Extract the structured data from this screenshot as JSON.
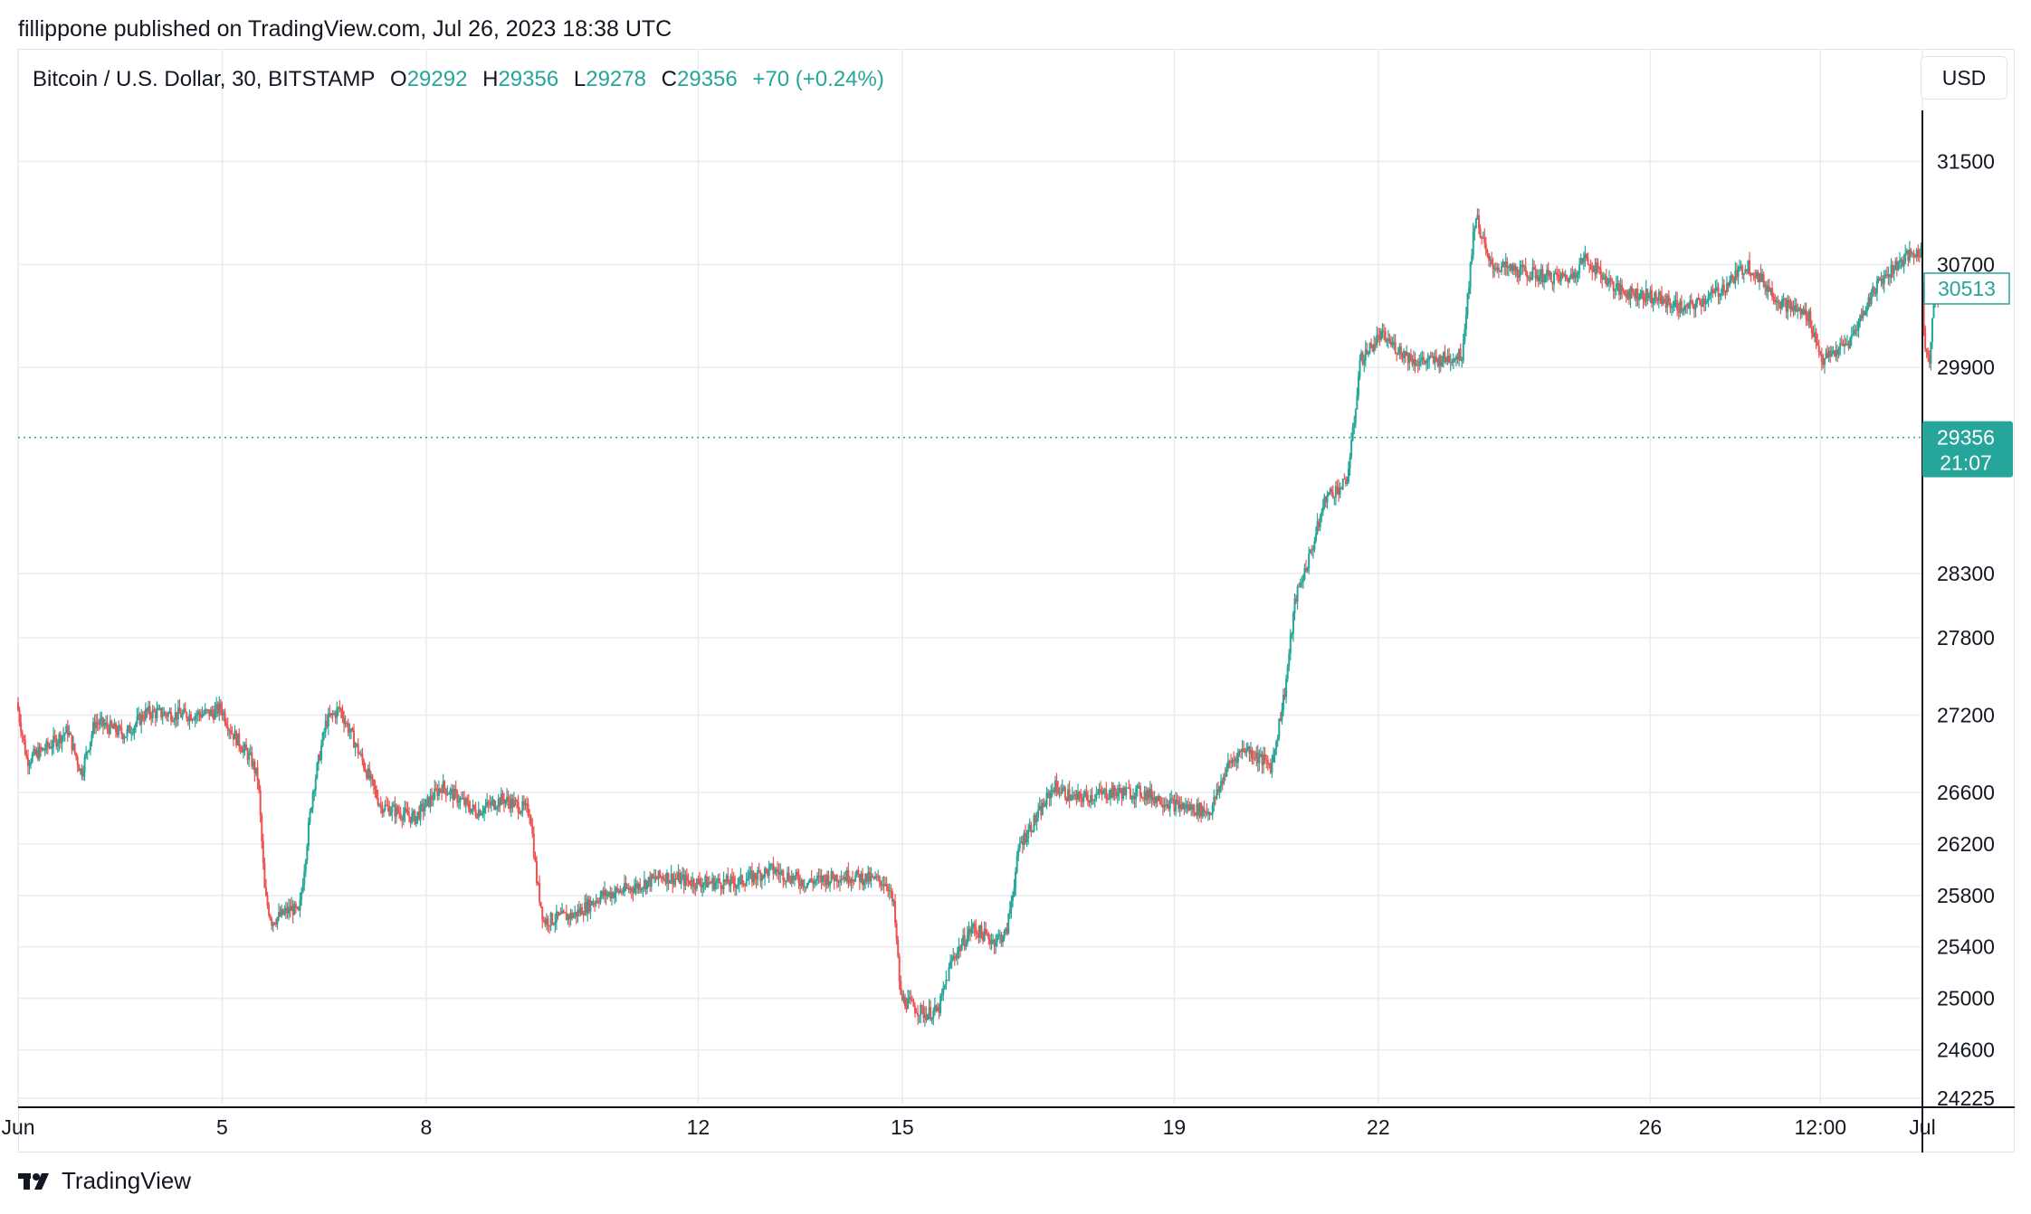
{
  "header": {
    "publish_line": "fillippone published on TradingView.com, Jul 26, 2023 18:38 UTC"
  },
  "legend": {
    "symbol": "Bitcoin / U.S. Dollar, 30, BITSTAMP",
    "open_label": "O",
    "open": "29292",
    "high_label": "H",
    "high": "29356",
    "low_label": "L",
    "low": "29278",
    "close_label": "C",
    "close": "29356",
    "change": "+70 (+0.24%)"
  },
  "currency_button": {
    "label": "USD"
  },
  "footer": {
    "brand": "TradingView"
  },
  "colors": {
    "up": "#26a69a",
    "down": "#ef5350",
    "grid": "#e8ecf2",
    "axis_line": "#131722",
    "text": "#131722",
    "last_price_bg": "#26a69a"
  },
  "icons": {
    "footer_logo": "tradingview-logo-icon"
  },
  "chart_data": {
    "type": "candlestick",
    "interval_minutes": 30,
    "ylim": [
      24225,
      31700
    ],
    "y_ticks": [
      31500,
      30700,
      29900,
      28300,
      27800,
      27200,
      26600,
      26200,
      25800,
      25400,
      25000,
      24600,
      24225
    ],
    "x_ticks": [
      {
        "day": 2,
        "label": "Jun"
      },
      {
        "day": 5,
        "label": "5"
      },
      {
        "day": 8,
        "label": "8"
      },
      {
        "day": 12,
        "label": "12"
      },
      {
        "day": 15,
        "label": "15"
      },
      {
        "day": 19,
        "label": "19"
      },
      {
        "day": 22,
        "label": "22"
      },
      {
        "day": 26,
        "label": "26"
      },
      {
        "day": 28.5,
        "label": "12:00"
      },
      {
        "day": 30.0,
        "label": "Jul"
      }
    ],
    "xlim_days": [
      2.0,
      30.0
    ],
    "price_path": [
      [
        2.0,
        27300
      ],
      [
        2.15,
        26850
      ],
      [
        2.45,
        26950
      ],
      [
        2.75,
        27080
      ],
      [
        2.95,
        26750
      ],
      [
        3.15,
        27150
      ],
      [
        3.6,
        27050
      ],
      [
        3.9,
        27220
      ],
      [
        4.5,
        27200
      ],
      [
        4.9,
        27220
      ],
      [
        5.0,
        27260
      ],
      [
        5.15,
        27080
      ],
      [
        5.45,
        26850
      ],
      [
        5.55,
        26700
      ],
      [
        5.65,
        25800
      ],
      [
        5.75,
        25600
      ],
      [
        6.05,
        25700
      ],
      [
        6.15,
        25650
      ],
      [
        6.35,
        26600
      ],
      [
        6.55,
        27150
      ],
      [
        6.75,
        27250
      ],
      [
        7.0,
        26950
      ],
      [
        7.35,
        26500
      ],
      [
        7.85,
        26400
      ],
      [
        8.25,
        26650
      ],
      [
        8.75,
        26450
      ],
      [
        9.15,
        26550
      ],
      [
        9.55,
        26450
      ],
      [
        9.65,
        25900
      ],
      [
        9.75,
        25600
      ],
      [
        10.2,
        25650
      ],
      [
        10.6,
        25800
      ],
      [
        11.0,
        25850
      ],
      [
        11.5,
        25950
      ],
      [
        12.0,
        25900
      ],
      [
        12.6,
        25900
      ],
      [
        13.1,
        26000
      ],
      [
        13.6,
        25900
      ],
      [
        14.1,
        25950
      ],
      [
        14.3,
        25950
      ],
      [
        14.8,
        25900
      ],
      [
        14.9,
        25700
      ],
      [
        15.0,
        25000
      ],
      [
        15.35,
        24880
      ],
      [
        15.55,
        24900
      ],
      [
        15.75,
        25300
      ],
      [
        16.05,
        25550
      ],
      [
        16.35,
        25450
      ],
      [
        16.55,
        25500
      ],
      [
        16.75,
        26200
      ],
      [
        17.05,
        26450
      ],
      [
        17.25,
        26650
      ],
      [
        17.55,
        26550
      ],
      [
        18.1,
        26600
      ],
      [
        18.55,
        26600
      ],
      [
        19.05,
        26500
      ],
      [
        19.55,
        26450
      ],
      [
        19.8,
        26800
      ],
      [
        20.05,
        26950
      ],
      [
        20.45,
        26800
      ],
      [
        20.65,
        27400
      ],
      [
        20.8,
        28100
      ],
      [
        21.05,
        28500
      ],
      [
        21.25,
        28900
      ],
      [
        21.55,
        29000
      ],
      [
        21.65,
        29400
      ],
      [
        21.75,
        29950
      ],
      [
        22.05,
        30150
      ],
      [
        22.55,
        29950
      ],
      [
        22.85,
        29950
      ],
      [
        23.25,
        30000
      ],
      [
        23.45,
        31100
      ],
      [
        23.65,
        30700
      ],
      [
        24.05,
        30650
      ],
      [
        24.55,
        30600
      ],
      [
        24.85,
        30600
      ],
      [
        25.05,
        30750
      ],
      [
        25.55,
        30500
      ],
      [
        26.05,
        30450
      ],
      [
        26.55,
        30350
      ],
      [
        27.05,
        30500
      ],
      [
        27.45,
        30700
      ],
      [
        27.95,
        30400
      ],
      [
        28.35,
        30300
      ],
      [
        28.55,
        29950
      ],
      [
        28.95,
        30100
      ],
      [
        29.35,
        30550
      ],
      [
        29.75,
        30750
      ],
      [
        30.0,
        30800
      ],
      [
        30.05,
        30100
      ],
      [
        30.12,
        29950
      ],
      [
        30.2,
        30500
      ],
      [
        30.3,
        30450
      ]
    ],
    "last_price": 29356,
    "last_price_countdown": "21:07",
    "crosshair_price": 30513
  }
}
